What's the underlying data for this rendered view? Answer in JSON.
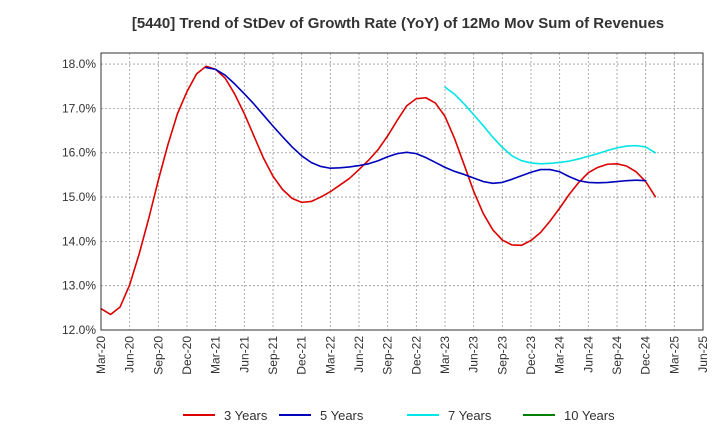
{
  "chart_data": {
    "type": "line",
    "title": "[5440]  Trend of StDev of Growth Rate (YoY) of 12Mo Mov Sum of Revenues",
    "xlabel": "",
    "ylabel": "",
    "ylim": [
      12.0,
      18.25
    ],
    "yticks": [
      12.0,
      13.0,
      14.0,
      15.0,
      16.0,
      17.0,
      18.0
    ],
    "ytick_labels": [
      "12.0%",
      "13.0%",
      "14.0%",
      "15.0%",
      "16.0%",
      "17.0%",
      "18.0%"
    ],
    "xticks": [
      "Mar-20",
      "Jun-20",
      "Sep-20",
      "Dec-20",
      "Mar-21",
      "Jun-21",
      "Sep-21",
      "Dec-21",
      "Mar-22",
      "Jun-22",
      "Sep-22",
      "Dec-22",
      "Mar-23",
      "Jun-23",
      "Sep-23",
      "Dec-23",
      "Mar-24",
      "Jun-24",
      "Sep-24",
      "Dec-24",
      "Mar-25",
      "Jun-25"
    ],
    "grid": true,
    "legend_position": "bottom",
    "series": [
      {
        "name": "3 Years",
        "color": "#dd0000",
        "start_index": 0,
        "values": [
          12.48,
          12.35,
          12.52,
          13.02,
          13.72,
          14.52,
          15.38,
          16.18,
          16.88,
          17.38,
          17.78,
          17.95,
          17.88,
          17.68,
          17.32,
          16.88,
          16.38,
          15.88,
          15.47,
          15.17,
          14.97,
          14.88,
          14.9,
          15.0,
          15.12,
          15.27,
          15.42,
          15.62,
          15.83,
          16.07,
          16.38,
          16.73,
          17.06,
          17.22,
          17.24,
          17.12,
          16.82,
          16.32,
          15.73,
          15.13,
          14.63,
          14.26,
          14.03,
          13.92,
          13.91,
          14.02,
          14.2,
          14.46,
          14.75,
          15.06,
          15.33,
          15.55,
          15.67,
          15.74,
          15.75,
          15.7,
          15.57,
          15.35,
          15.01
        ]
      },
      {
        "name": "5 Years",
        "color": "#0000bb",
        "start_index": 11,
        "values": [
          17.92,
          17.88,
          17.75,
          17.55,
          17.33,
          17.1,
          16.85,
          16.6,
          16.36,
          16.13,
          15.93,
          15.78,
          15.69,
          15.65,
          15.66,
          15.68,
          15.71,
          15.75,
          15.82,
          15.91,
          15.98,
          16.01,
          15.98,
          15.89,
          15.78,
          15.67,
          15.58,
          15.51,
          15.43,
          15.35,
          15.31,
          15.33,
          15.4,
          15.48,
          15.56,
          15.62,
          15.62,
          15.57,
          15.46,
          15.37,
          15.33,
          15.32,
          15.33,
          15.35,
          15.37,
          15.38,
          15.37
        ]
      },
      {
        "name": "7 Years",
        "color": "#00e5e5",
        "start_index": 36,
        "values": [
          17.48,
          17.32,
          17.1,
          16.86,
          16.61,
          16.35,
          16.12,
          15.93,
          15.82,
          15.77,
          15.75,
          15.76,
          15.78,
          15.81,
          15.86,
          15.92,
          15.98,
          16.05,
          16.11,
          16.15,
          16.16,
          16.13,
          16.0
        ]
      },
      {
        "name": "10 Years",
        "color": "#008000",
        "start_index": 0,
        "values": []
      }
    ]
  }
}
